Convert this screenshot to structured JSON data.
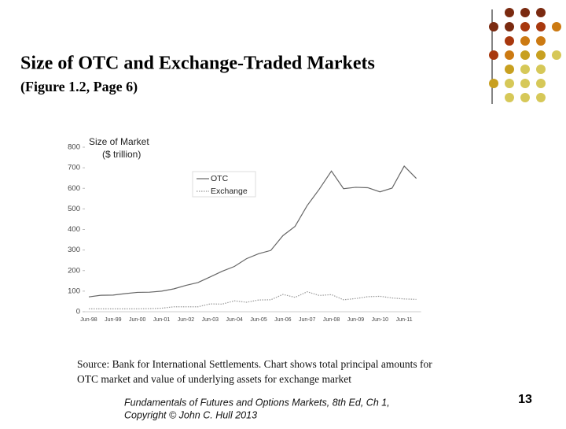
{
  "header": {
    "title": "Size of OTC and Exchange-Traded Markets",
    "subtitle": "(Figure 1.2, Page 6)"
  },
  "chart_data": {
    "type": "line",
    "y_label": [
      "Size of Market",
      "($ trillion)"
    ],
    "categories": [
      "Jun-98",
      null,
      "Jun-99",
      null,
      "Jun-00",
      null,
      "Jun-01",
      null,
      "Jun-02",
      null,
      "Jun-03",
      null,
      "Jun-04",
      null,
      "Jun-05",
      null,
      "Jun-06",
      null,
      "Jun-07",
      null,
      "Jun-08",
      null,
      "Jun-09",
      null,
      "Jun-10",
      null,
      "Jun-11",
      null
    ],
    "series": [
      {
        "name": "OTC",
        "color": "#666666",
        "dash": false,
        "values": [
          72,
          80,
          81,
          88,
          94,
          95,
          100,
          111,
          128,
          142,
          169,
          197,
          220,
          258,
          282,
          298,
          370,
          415,
          516,
          596,
          684,
          598,
          605,
          603,
          583,
          601,
          708,
          648
        ]
      },
      {
        "name": "Exchange",
        "color": "#999999",
        "dash": true,
        "values": [
          14,
          14,
          14,
          14,
          14,
          15,
          17,
          24,
          24,
          24,
          38,
          37,
          53,
          46,
          57,
          58,
          84,
          70,
          97,
          79,
          83,
          58,
          64,
          73,
          75,
          67,
          62,
          60
        ]
      }
    ],
    "ylim": [
      0,
      800
    ],
    "yticks": [
      0,
      100,
      200,
      300,
      400,
      500,
      600,
      700,
      800
    ],
    "grid": false
  },
  "source": [
    "Source: Bank for International Settlements. Chart shows total principal amounts for",
    "OTC market and value of underlying assets for exchange market"
  ],
  "footer": [
    "Fundamentals of Futures and Options Markets, 8th Ed, Ch 1,",
    "Copyright © John C. Hull 2013"
  ],
  "page_number": "13"
}
